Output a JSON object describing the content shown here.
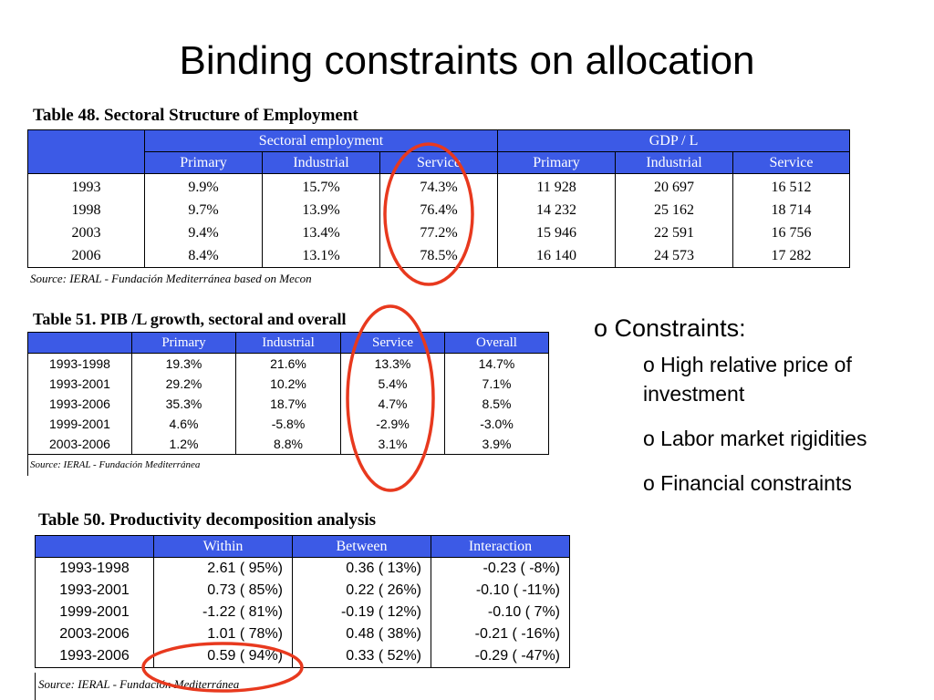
{
  "title": "Binding constraints on allocation",
  "table48": {
    "caption": "Table 48. Sectoral Structure of Employment",
    "group1": "Sectoral employment",
    "group2": "GDP / L",
    "cols": [
      "Primary",
      "Industrial",
      "Service",
      "Primary",
      "Industrial",
      "Service"
    ],
    "rows": [
      [
        "1993",
        "9.9%",
        "15.7%",
        "74.3%",
        "11 928",
        "20 697",
        "16 512"
      ],
      [
        "1998",
        "9.7%",
        "13.9%",
        "76.4%",
        "14 232",
        "25 162",
        "18 714"
      ],
      [
        "2003",
        "9.4%",
        "13.4%",
        "77.2%",
        "15 946",
        "22 591",
        "16 756"
      ],
      [
        "2006",
        "8.4%",
        "13.1%",
        "78.5%",
        "16 140",
        "24 573",
        "17 282"
      ]
    ],
    "source": "Source: IERAL - Fundación Mediterránea based on Mecon"
  },
  "table51": {
    "caption": "Table 51. PIB /L growth, sectoral and overall",
    "cols": [
      "Primary",
      "Industrial",
      "Service",
      "Overall"
    ],
    "rows": [
      [
        "1993-1998",
        "19.3%",
        "21.6%",
        "13.3%",
        "14.7%"
      ],
      [
        "1993-2001",
        "29.2%",
        "10.2%",
        "5.4%",
        "7.1%"
      ],
      [
        "1993-2006",
        "35.3%",
        "18.7%",
        "4.7%",
        "8.5%"
      ],
      [
        "1999-2001",
        "4.6%",
        "-5.8%",
        "-2.9%",
        "-3.0%"
      ],
      [
        "2003-2006",
        "1.2%",
        "8.8%",
        "3.1%",
        "3.9%"
      ]
    ],
    "source": "Source: IERAL - Fundación Mediterránea"
  },
  "table50": {
    "caption": "Table 50. Productivity decomposition analysis",
    "cols": [
      "Within",
      "Between",
      "Interaction"
    ],
    "rows": [
      [
        "1993-1998",
        "2.61 ( 95%)",
        "0.36 ( 13%)",
        "-0.23 ( -8%)"
      ],
      [
        "1993-2001",
        "0.73 ( 85%)",
        "0.22 ( 26%)",
        "-0.10 ( -11%)"
      ],
      [
        "1999-2001",
        "-1.22 ( 81%)",
        "-0.19 ( 12%)",
        "-0.10 ( 7%)"
      ],
      [
        "2003-2006",
        "1.01 ( 78%)",
        "0.48 ( 38%)",
        "-0.21 ( -16%)"
      ],
      [
        "1993-2006",
        "0.59 ( 94%)",
        "0.33 ( 52%)",
        "-0.29 ( -47%)"
      ]
    ],
    "source": "Source: IERAL - Fundación Mediterránea"
  },
  "bullets": {
    "main": "o Constraints:",
    "sub": [
      "o High relative price of investment",
      "o Labor market rigidities",
      "o Financial constraints"
    ]
  },
  "colors": {
    "header_bg": "#3c5ae6",
    "highlight": "#e8391e"
  }
}
